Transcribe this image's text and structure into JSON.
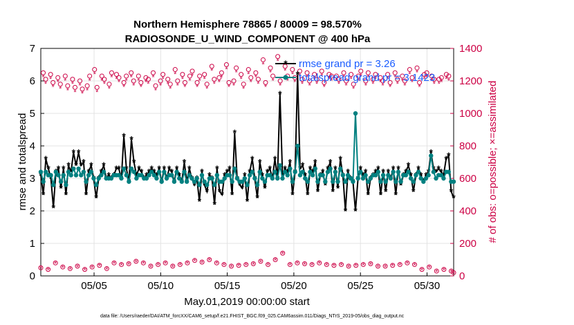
{
  "chart_data": {
    "type": "line",
    "title": "Northern Hemisphere 78865 / 80009 = 98.570%",
    "subtitle": "RADIOSONDE_U_WIND_COMPONENT @ 400 hPa",
    "xlabel": "May.01,2019 00:00:00 start",
    "ylabel": "rmse and totalspread",
    "y2label": "# of obs: o=possible; ×=assimilated",
    "xlim": [
      1,
      32
    ],
    "ylim": [
      0,
      7
    ],
    "y2lim": [
      0,
      1400
    ],
    "x_ticks": [
      5,
      10,
      15,
      20,
      25,
      30
    ],
    "x_tick_labels": [
      "05/05",
      "05/10",
      "05/15",
      "05/20",
      "05/25",
      "05/30"
    ],
    "y_ticks": [
      0,
      1,
      2,
      3,
      4,
      5,
      6,
      7
    ],
    "y_tick_labels": [
      "0",
      "1",
      "2",
      "3",
      "4",
      "5",
      "6",
      "7"
    ],
    "y2_ticks": [
      0,
      200,
      400,
      600,
      800,
      1000,
      1200,
      1400
    ],
    "y2_tick_labels": [
      "0",
      "200",
      "400",
      "600",
      "800",
      "1000",
      "1200",
      "1400"
    ],
    "grid": true,
    "legend_position": "top-right",
    "colors": {
      "rmse": "#000000",
      "spread": "#008080",
      "obs": "#cc0044"
    },
    "series": [
      {
        "name": "rmse grand pr = 3.26",
        "axis": "left",
        "values": [
          3.1,
          2.5,
          3.6,
          3.3,
          3.0,
          2.1,
          3.2,
          3.3,
          2.7,
          3.3,
          2.5,
          3.4,
          3.2,
          3.8,
          3.4,
          3.8,
          3.4,
          3.5,
          2.5,
          3.2,
          3.4,
          3.0,
          2.4,
          3.0,
          3.2,
          3.4,
          3.0,
          3.1,
          3.0,
          3.1,
          3.3,
          3.3,
          3.0,
          4.3,
          3.3,
          2.9,
          4.2,
          3.5,
          3.1,
          3.3,
          3.2,
          3.0,
          3.1,
          3.2,
          3.3,
          3.2,
          3.1,
          3.3,
          2.9,
          3.3,
          3.0,
          3.3,
          3.2,
          2.9,
          3.3,
          3.1,
          2.9,
          3.5,
          2.9,
          3.3,
          3.0,
          2.8,
          3.0,
          2.3,
          3.2,
          2.8,
          2.6,
          3.1,
          3.0,
          2.2,
          3.3,
          2.6,
          2.5,
          3.1,
          3.2,
          3.3,
          2.5,
          4.4,
          3.0,
          2.8,
          2.7,
          3.1,
          2.3,
          3.2,
          3.6,
          3.0,
          2.4,
          3.5,
          3.1,
          2.7,
          3.2,
          3.3,
          3.0,
          3.6,
          3.0,
          5.6,
          3.1,
          3.3,
          3.2,
          3.5,
          2.5,
          3.2,
          6.2,
          3.3,
          3.4,
          3.1,
          2.5,
          3.3,
          3.2,
          3.5,
          2.6,
          3.1,
          3.2,
          2.8,
          3.3,
          3.5,
          2.6,
          3.3,
          2.7,
          3.6,
          3.1,
          2.0,
          3.2,
          3.0,
          2.9,
          2.0,
          3.0,
          3.3,
          3.1,
          3.2,
          2.5,
          3.0,
          3.1,
          3.2,
          3.3,
          2.5,
          3.2,
          2.6,
          3.2,
          3.0,
          3.3,
          2.5,
          3.3,
          2.8,
          3.1,
          3.2,
          3.4,
          3.1,
          2.6,
          3.1,
          3.3,
          3.1,
          2.9,
          3.1,
          3.2,
          3.8,
          3.3,
          3.2,
          3.3,
          3.2,
          3.1,
          3.6,
          3.7,
          2.6,
          2.4
        ],
        "marker": "asterisk"
      },
      {
        "name": "totalspread grand pr = 3.1423",
        "axis": "left",
        "values": [
          3.2,
          2.9,
          3.2,
          3.1,
          3.1,
          2.8,
          3.2,
          3.1,
          2.9,
          3.1,
          2.8,
          3.2,
          3.1,
          3.3,
          3.1,
          3.3,
          3.1,
          3.2,
          2.9,
          3.1,
          3.2,
          3.0,
          2.8,
          3.0,
          3.1,
          3.2,
          3.0,
          3.0,
          3.0,
          3.1,
          3.1,
          3.1,
          3.0,
          3.3,
          3.1,
          2.9,
          3.3,
          3.2,
          3.0,
          3.1,
          3.1,
          3.0,
          3.0,
          3.1,
          3.2,
          3.1,
          3.0,
          3.2,
          2.9,
          3.2,
          3.0,
          3.1,
          3.1,
          2.9,
          3.2,
          3.0,
          2.9,
          3.2,
          2.9,
          3.1,
          3.0,
          2.9,
          3.0,
          2.8,
          3.1,
          2.9,
          2.8,
          3.0,
          3.0,
          2.8,
          3.1,
          2.9,
          2.9,
          3.0,
          3.1,
          3.1,
          2.9,
          3.3,
          3.0,
          2.9,
          2.9,
          3.0,
          2.8,
          3.1,
          3.2,
          3.0,
          2.8,
          3.2,
          3.0,
          2.9,
          3.1,
          3.1,
          3.0,
          3.2,
          3.0,
          3.4,
          3.0,
          3.2,
          3.1,
          3.3,
          2.9,
          3.2,
          4.0,
          3.1,
          3.2,
          3.0,
          2.9,
          3.2,
          3.1,
          3.3,
          2.9,
          3.1,
          3.1,
          2.9,
          3.2,
          3.3,
          2.9,
          3.2,
          2.9,
          3.3,
          3.1,
          2.9,
          3.1,
          3.0,
          2.9,
          5.0,
          3.0,
          3.2,
          3.0,
          3.1,
          2.9,
          3.0,
          3.1,
          3.1,
          3.2,
          2.9,
          3.1,
          2.9,
          3.1,
          3.0,
          3.2,
          2.9,
          3.2,
          2.9,
          3.1,
          3.1,
          3.2,
          3.0,
          2.9,
          3.1,
          3.2,
          3.0,
          2.9,
          3.0,
          3.1,
          3.7,
          3.2,
          3.0,
          3.1,
          3.1,
          3.0,
          3.2,
          3.2,
          2.9,
          2.9
        ],
        "marker": "circle"
      },
      {
        "name": "obs possible",
        "axis": "right",
        "values": [
          50,
          1250,
          1210,
          40,
          1240,
          1190,
          80,
          1220,
          1180,
          55,
          1230,
          1170,
          45,
          1210,
          1160,
          60,
          1200,
          1150,
          40,
          1170,
          1230,
          55,
          1270,
          1160,
          65,
          1230,
          1210,
          45,
          1180,
          1250,
          80,
          1240,
          1220,
          70,
          1190,
          1230,
          75,
          1250,
          1200,
          90,
          1230,
          1190,
          80,
          1220,
          1210,
          60,
          1250,
          1170,
          70,
          1200,
          1240,
          80,
          1210,
          1180,
          60,
          1270,
          1200,
          70,
          1240,
          1190,
          80,
          1230,
          1260,
          95,
          1190,
          1230,
          85,
          1240,
          1180,
          100,
          1290,
          1210,
          80,
          1220,
          1250,
          70,
          1300,
          1190,
          60,
          1200,
          1280,
          65,
          1240,
          1180,
          70,
          1270,
          1220,
          75,
          1250,
          1210,
          90,
          1330,
          1190,
          70,
          1280,
          1230,
          100,
          1350,
          1200,
          140,
          1290,
          1230,
          70,
          1270,
          1220,
          80,
          1260,
          1210,
          75,
          1250,
          1200,
          70,
          1240,
          1210,
          80,
          1260,
          1190,
          70,
          1240,
          1230,
          65,
          1230,
          1210,
          70,
          1250,
          1200,
          60,
          1240,
          1180,
          65,
          1230,
          1260,
          70,
          1200,
          1250,
          75,
          1210,
          1240,
          60,
          1220,
          1200,
          60,
          1240,
          1190,
          65,
          1250,
          1210,
          70,
          1230,
          1200,
          80,
          1270,
          1220,
          70,
          1280,
          1190,
          40,
          1240,
          1250,
          55,
          1230,
          1210,
          30,
          1210,
          1220,
          40,
          1240,
          1230,
          30,
          20
        ],
        "marker": "circle"
      },
      {
        "name": "obs assimilated",
        "axis": "right",
        "values": [
          48,
          1225,
          1185,
          38,
          1215,
          1165,
          78,
          1195,
          1155,
          53,
          1205,
          1145,
          43,
          1185,
          1135,
          58,
          1175,
          1125,
          38,
          1145,
          1205,
          53,
          1245,
          1135,
          63,
          1205,
          1185,
          43,
          1155,
          1225,
          78,
          1215,
          1195,
          68,
          1165,
          1205,
          73,
          1225,
          1175,
          88,
          1205,
          1165,
          78,
          1195,
          1185,
          58,
          1225,
          1145,
          68,
          1175,
          1215,
          78,
          1185,
          1155,
          58,
          1245,
          1175,
          68,
          1215,
          1165,
          78,
          1205,
          1235,
          93,
          1165,
          1205,
          83,
          1215,
          1155,
          98,
          1265,
          1185,
          78,
          1195,
          1225,
          68,
          1275,
          1165,
          58,
          1175,
          1255,
          63,
          1215,
          1155,
          68,
          1245,
          1195,
          73,
          1225,
          1185,
          88,
          1305,
          1165,
          68,
          1255,
          1205,
          98,
          1325,
          1175,
          138,
          1265,
          1205,
          68,
          1245,
          1195,
          78,
          1235,
          1185,
          73,
          1225,
          1175,
          68,
          1215,
          1185,
          78,
          1235,
          1165,
          68,
          1215,
          1205,
          63,
          1205,
          1185,
          68,
          1225,
          1175,
          58,
          1215,
          1155,
          63,
          1205,
          1235,
          68,
          1175,
          1225,
          73,
          1185,
          1215,
          58,
          1195,
          1175,
          58,
          1215,
          1165,
          63,
          1225,
          1185,
          68,
          1205,
          1175,
          78,
          1245,
          1195,
          68,
          1255,
          1165,
          38,
          1215,
          1225,
          53,
          1205,
          1185,
          28,
          1185,
          1195,
          38,
          1215,
          1205,
          28,
          18
        ],
        "marker": "asterisk"
      }
    ],
    "footer": "data file: /Users/raeder/DAI/ATM_forcXX/CAM6_setup/f.e21.FHIST_BGC.f09_025.CAM6assim.011/Diags_NTrS_2019-05/obs_diag_output.nc"
  }
}
